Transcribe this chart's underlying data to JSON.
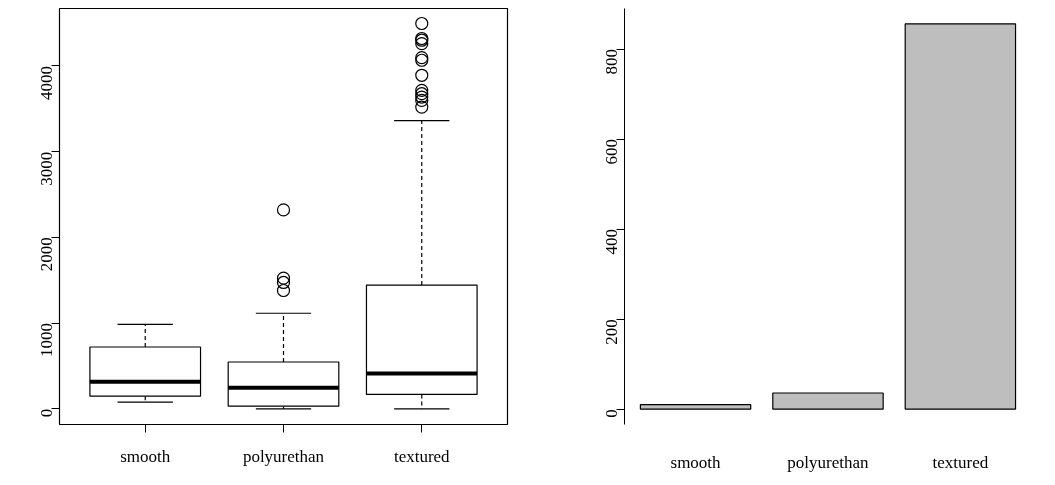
{
  "chart_data": [
    {
      "type": "box",
      "categories": [
        "smooth",
        "polyurethan",
        "textured"
      ],
      "boxes": [
        {
          "low": 78,
          "q1": 148,
          "median": 316,
          "q3": 721,
          "high": 986
        },
        {
          "low": 0,
          "q1": 31,
          "median": 246,
          "q3": 546,
          "high": 1115,
          "outliers": [
            1380,
            1474,
            1524,
            2320
          ]
        },
        {
          "low": 0,
          "q1": 168,
          "median": 413,
          "q3": 1443,
          "high": 3361,
          "outliers": [
            3520,
            3598,
            3637,
            3676,
            3715,
            3891,
            4066,
            4097,
            4261,
            4300,
            4320,
            4495
          ]
        }
      ],
      "ylim": [
        -183,
        4670
      ],
      "yticks": [
        0,
        1000,
        2000,
        3000,
        4000
      ],
      "grid": false
    },
    {
      "type": "bar",
      "categories": [
        "smooth",
        "polyurethan",
        "textured"
      ],
      "values": [
        10,
        36,
        856
      ],
      "color": "#bebebe",
      "ylim": [
        -34,
        890
      ],
      "yticks": [
        0,
        200,
        400,
        600,
        800
      ],
      "grid": false
    }
  ]
}
